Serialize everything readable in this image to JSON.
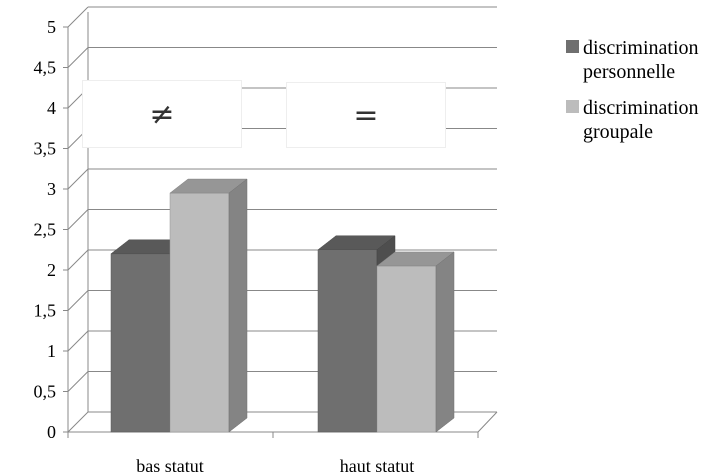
{
  "chart_data": {
    "type": "bar",
    "categories": [
      "bas statut",
      "haut statut"
    ],
    "series": [
      {
        "name": "discrimination personnelle",
        "values": [
          2.2,
          2.25
        ],
        "color": "#6f6f6f"
      },
      {
        "name": "discrimination groupale",
        "values": [
          2.95,
          2.05
        ],
        "color": "#bcbcbc"
      }
    ],
    "y_ticks": [
      "0",
      "0,5",
      "1",
      "1,5",
      "2",
      "2,5",
      "3",
      "3,5",
      "4",
      "4,5",
      "5"
    ],
    "ylim": [
      0,
      5
    ],
    "grid": true,
    "legend_position": "right",
    "annotations": [
      "≠",
      "="
    ]
  }
}
